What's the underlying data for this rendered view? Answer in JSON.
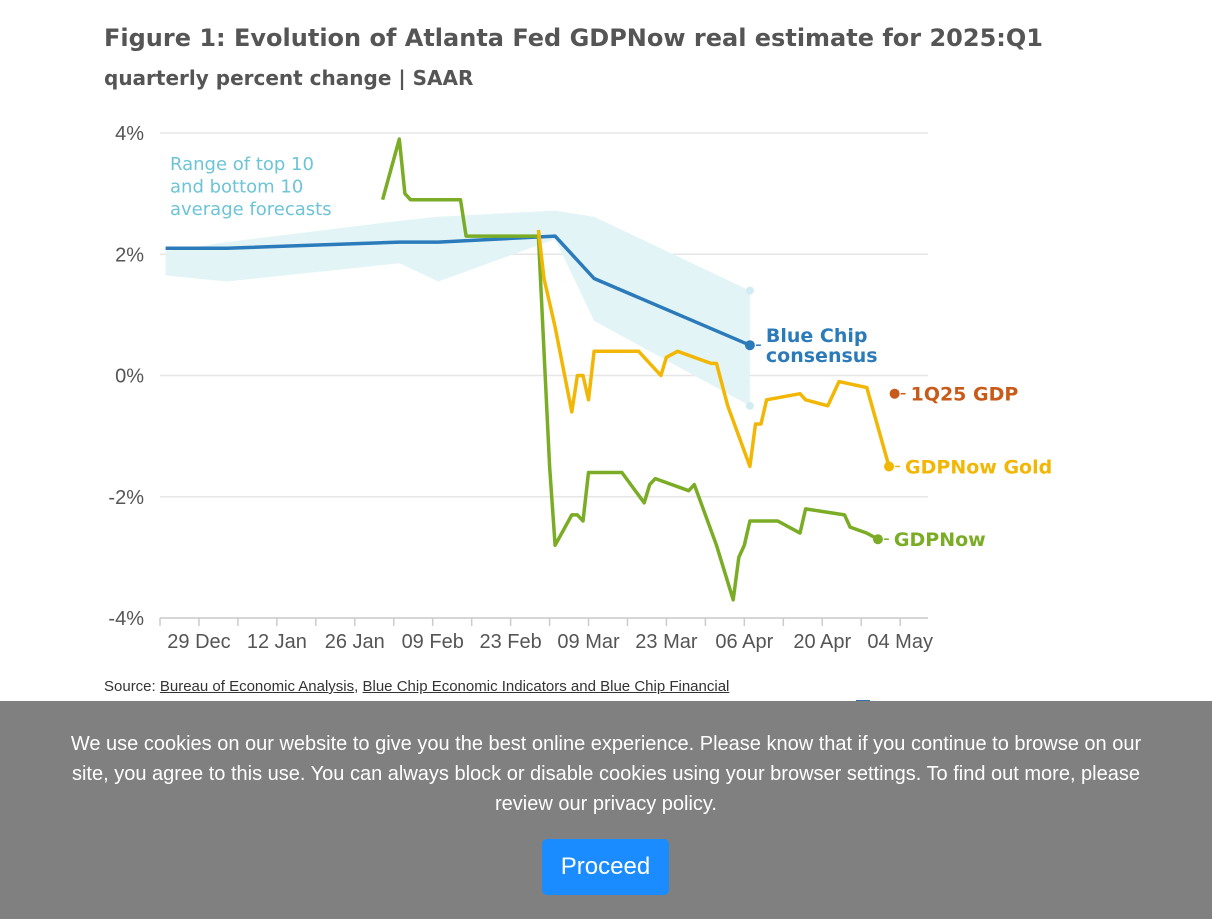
{
  "title": "Figure 1: Evolution of Atlanta Fed GDPNow real estimate for 2025:Q1",
  "subtitle": "quarterly percent change | SAAR",
  "chart_data": {
    "type": "line",
    "x_ticks": [
      "29 Dec",
      "12 Jan",
      "26 Jan",
      "09 Feb",
      "23 Feb",
      "09 Mar",
      "23 Mar",
      "06 Apr",
      "20 Apr",
      "04 May"
    ],
    "y_ticks": [
      "4%",
      "2%",
      "0%",
      "-2%",
      "-4%"
    ],
    "ylim": [
      -4,
      4
    ],
    "xlim": [
      "2024-12-22",
      "2025-05-09"
    ],
    "grid": true,
    "range_annotation": "Range of top 10 and bottom 10 average forecasts",
    "range_band": [
      {
        "x": "2024-12-23",
        "low": 1.65,
        "high": 2.05
      },
      {
        "x": "2025-01-03",
        "low": 1.55,
        "high": 2.2
      },
      {
        "x": "2025-02-03",
        "low": 1.85,
        "high": 2.55
      },
      {
        "x": "2025-02-10",
        "low": 1.55,
        "high": 2.62
      },
      {
        "x": "2025-03-03",
        "low": 2.25,
        "high": 2.72
      },
      {
        "x": "2025-03-10",
        "low": 0.9,
        "high": 2.62
      },
      {
        "x": "2025-04-07",
        "low": -0.5,
        "high": 1.4
      }
    ],
    "series": [
      {
        "name": "Blue Chip consensus",
        "color": "#2b7bba",
        "points": [
          {
            "x": "2024-12-23",
            "y": 2.1
          },
          {
            "x": "2025-01-03",
            "y": 2.1
          },
          {
            "x": "2025-02-03",
            "y": 2.2
          },
          {
            "x": "2025-02-10",
            "y": 2.2
          },
          {
            "x": "2025-03-03",
            "y": 2.3
          },
          {
            "x": "2025-03-10",
            "y": 1.6
          },
          {
            "x": "2025-04-07",
            "y": 0.5
          }
        ]
      },
      {
        "name": "GDPNow",
        "color": "#7aad25",
        "points": [
          {
            "x": "2025-01-31",
            "y": 2.9
          },
          {
            "x": "2025-02-03",
            "y": 3.9
          },
          {
            "x": "2025-02-04",
            "y": 3.0
          },
          {
            "x": "2025-02-05",
            "y": 2.9
          },
          {
            "x": "2025-02-14",
            "y": 2.9
          },
          {
            "x": "2025-02-15",
            "y": 2.3
          },
          {
            "x": "2025-02-28",
            "y": 2.3
          },
          {
            "x": "2025-03-02",
            "y": -1.5
          },
          {
            "x": "2025-03-03",
            "y": -2.8
          },
          {
            "x": "2025-03-06",
            "y": -2.3
          },
          {
            "x": "2025-03-07",
            "y": -2.3
          },
          {
            "x": "2025-03-08",
            "y": -2.4
          },
          {
            "x": "2025-03-09",
            "y": -1.6
          },
          {
            "x": "2025-03-15",
            "y": -1.6
          },
          {
            "x": "2025-03-19",
            "y": -2.1
          },
          {
            "x": "2025-03-20",
            "y": -1.8
          },
          {
            "x": "2025-03-21",
            "y": -1.7
          },
          {
            "x": "2025-03-27",
            "y": -1.9
          },
          {
            "x": "2025-03-28",
            "y": -1.8
          },
          {
            "x": "2025-04-01",
            "y": -2.8
          },
          {
            "x": "2025-04-04",
            "y": -3.7
          },
          {
            "x": "2025-04-05",
            "y": -3.0
          },
          {
            "x": "2025-04-06",
            "y": -2.8
          },
          {
            "x": "2025-04-07",
            "y": -2.4
          },
          {
            "x": "2025-04-12",
            "y": -2.4
          },
          {
            "x": "2025-04-16",
            "y": -2.6
          },
          {
            "x": "2025-04-17",
            "y": -2.2
          },
          {
            "x": "2025-04-24",
            "y": -2.3
          },
          {
            "x": "2025-04-25",
            "y": -2.5
          },
          {
            "x": "2025-04-28",
            "y": -2.6
          },
          {
            "x": "2025-04-30",
            "y": -2.7
          }
        ]
      },
      {
        "name": "GDPNow Gold",
        "color": "#f2b705",
        "points": [
          {
            "x": "2025-02-28",
            "y": 2.4
          },
          {
            "x": "2025-03-01",
            "y": 1.6
          },
          {
            "x": "2025-03-03",
            "y": 0.8
          },
          {
            "x": "2025-03-06",
            "y": -0.6
          },
          {
            "x": "2025-03-07",
            "y": 0.0
          },
          {
            "x": "2025-03-08",
            "y": 0.0
          },
          {
            "x": "2025-03-09",
            "y": -0.4
          },
          {
            "x": "2025-03-10",
            "y": 0.4
          },
          {
            "x": "2025-03-18",
            "y": 0.4
          },
          {
            "x": "2025-03-22",
            "y": 0.0
          },
          {
            "x": "2025-03-23",
            "y": 0.3
          },
          {
            "x": "2025-03-25",
            "y": 0.4
          },
          {
            "x": "2025-03-31",
            "y": 0.2
          },
          {
            "x": "2025-04-01",
            "y": 0.2
          },
          {
            "x": "2025-04-03",
            "y": -0.5
          },
          {
            "x": "2025-04-07",
            "y": -1.5
          },
          {
            "x": "2025-04-08",
            "y": -0.8
          },
          {
            "x": "2025-04-09",
            "y": -0.8
          },
          {
            "x": "2025-04-10",
            "y": -0.4
          },
          {
            "x": "2025-04-16",
            "y": -0.3
          },
          {
            "x": "2025-04-17",
            "y": -0.4
          },
          {
            "x": "2025-04-21",
            "y": -0.5
          },
          {
            "x": "2025-04-23",
            "y": -0.1
          },
          {
            "x": "2025-04-28",
            "y": -0.2
          },
          {
            "x": "2025-05-02",
            "y": -1.5
          }
        ]
      },
      {
        "name": "1Q25 GDP",
        "color": "#c85a1a",
        "points": [
          {
            "x": "2025-05-03",
            "y": -0.3
          }
        ]
      }
    ],
    "end_labels": [
      {
        "series": "Blue Chip consensus",
        "lines": [
          "Blue Chip",
          "consensus"
        ]
      },
      {
        "series": "1Q25 GDP",
        "lines": [
          "1Q25 GDP"
        ]
      },
      {
        "series": "GDPNow Gold",
        "lines": [
          "GDPNow Gold"
        ]
      },
      {
        "series": "GDPNow",
        "lines": [
          "GDPNow"
        ]
      }
    ],
    "band_color": "#e3f4f7",
    "annotation_color": "#6cc4d6"
  },
  "source": {
    "label": "Source:",
    "links": [
      "Bureau of Economic Analysis",
      "Blue Chip Economic Indicators and Blue Chip Financial"
    ],
    "separator": ","
  },
  "cookie_banner": {
    "message": "We use cookies on our website to give you the best online experience. Please know that if you continue to browse on our site, you agree to this use. You can always block or disable cookies using your browser settings. To find out more, please review our",
    "link": "privacy policy",
    "end": ".",
    "button": "Proceed"
  }
}
